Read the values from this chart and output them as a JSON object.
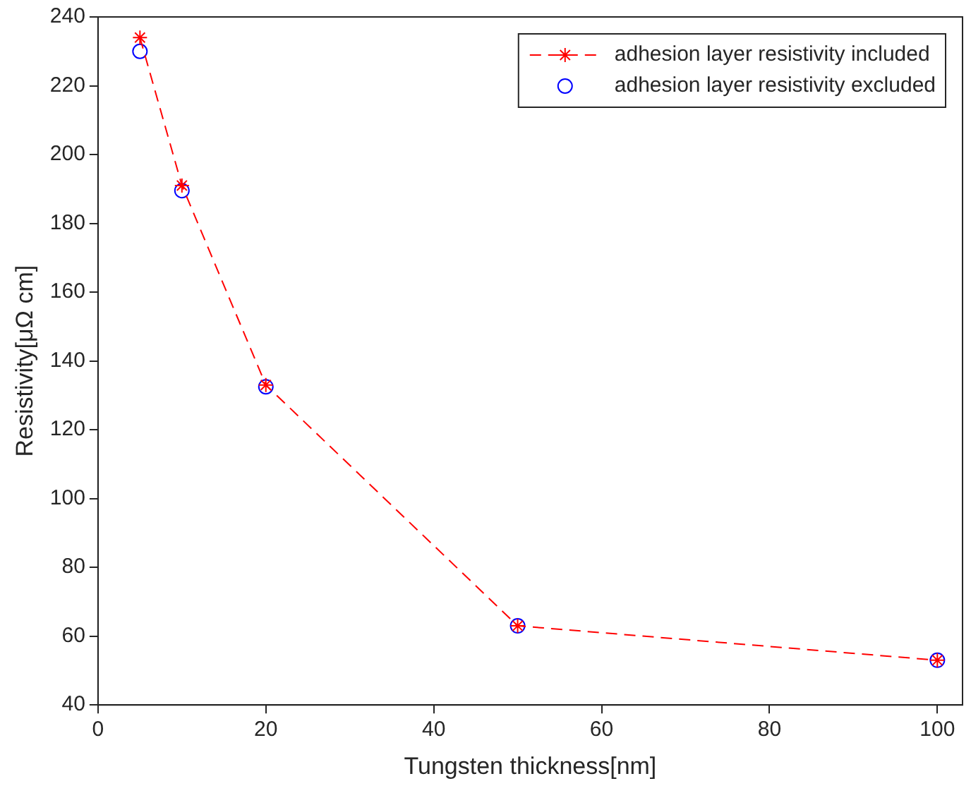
{
  "chart_data": {
    "type": "line",
    "xlabel": "Tungsten thickness[nm]",
    "ylabel": "Resistivity[μΩ cm]",
    "x": [
      5,
      10,
      20,
      50,
      100
    ],
    "series": [
      {
        "name": "adhesion layer resistivity included",
        "color": "#ff0000",
        "marker": "cross",
        "line_style": "dashed",
        "values": [
          234,
          191,
          133,
          63,
          53
        ]
      },
      {
        "name": "adhesion layer resistivity excluded",
        "type": "scatter",
        "color": "#0000ff",
        "marker": "circle",
        "values": [
          230,
          189.5,
          132.5,
          63,
          53
        ]
      }
    ],
    "xlim": [
      0,
      103
    ],
    "xticks": [
      0,
      20,
      40,
      60,
      80,
      100
    ],
    "ylim": [
      40,
      240
    ],
    "yticks": [
      40,
      60,
      80,
      100,
      120,
      140,
      160,
      180,
      200,
      220,
      240
    ],
    "grid": false,
    "legend": "top right"
  }
}
